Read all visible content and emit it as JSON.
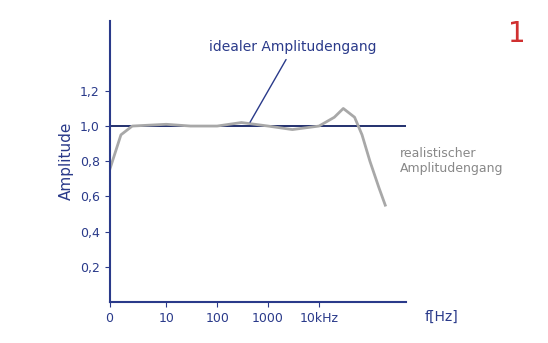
{
  "chart_data": {
    "type": "line",
    "x_label": "f[Hz]",
    "y_label": "Amplitude",
    "log": "x",
    "x": [
      0,
      2,
      4,
      10,
      30,
      100,
      300,
      1000,
      3000,
      10000,
      20000,
      30000,
      50000,
      70000,
      100000,
      150000,
      200000,
      500000
    ],
    "series": [
      {
        "name": "idealer Amplitudengang",
        "color": "#23306e",
        "line_style": "solid",
        "values": [
          1.0,
          1.0,
          1.0,
          1.0,
          1.0,
          1.0,
          1.0,
          1.0,
          1.0,
          1.0,
          1.0,
          1.0,
          1.0,
          1.0,
          1.0,
          1.0,
          1.0,
          1.0
        ]
      },
      {
        "name": "realistischer Amplitudengang",
        "color": "#a8a8a8",
        "line_style": "solid",
        "values": [
          0.75,
          0.95,
          1.0,
          1.01,
          1.0,
          1.0,
          1.02,
          1.0,
          0.98,
          1.0,
          1.05,
          1.1,
          1.05,
          0.95,
          0.8,
          0.65,
          0.55,
          null
        ]
      }
    ],
    "xlim": [
      0,
      500000
    ],
    "ylim": [
      0,
      1.6
    ],
    "xticks": [
      0,
      10,
      100,
      1000,
      {
        "value": 10000,
        "label": "10kHz"
      }
    ],
    "yticks": [
      {
        "value": 0.2,
        "label": "0,2"
      },
      {
        "value": 0.4,
        "label": "0,4"
      },
      {
        "value": 0.6,
        "label": "0,6"
      },
      {
        "value": 0.8,
        "label": "0,8"
      },
      {
        "value": 1.0,
        "label": "1,0"
      },
      {
        "value": 1.2,
        "label": "1,2"
      }
    ],
    "annotations": [
      {
        "text": "1",
        "color": "#d03030"
      }
    ]
  }
}
